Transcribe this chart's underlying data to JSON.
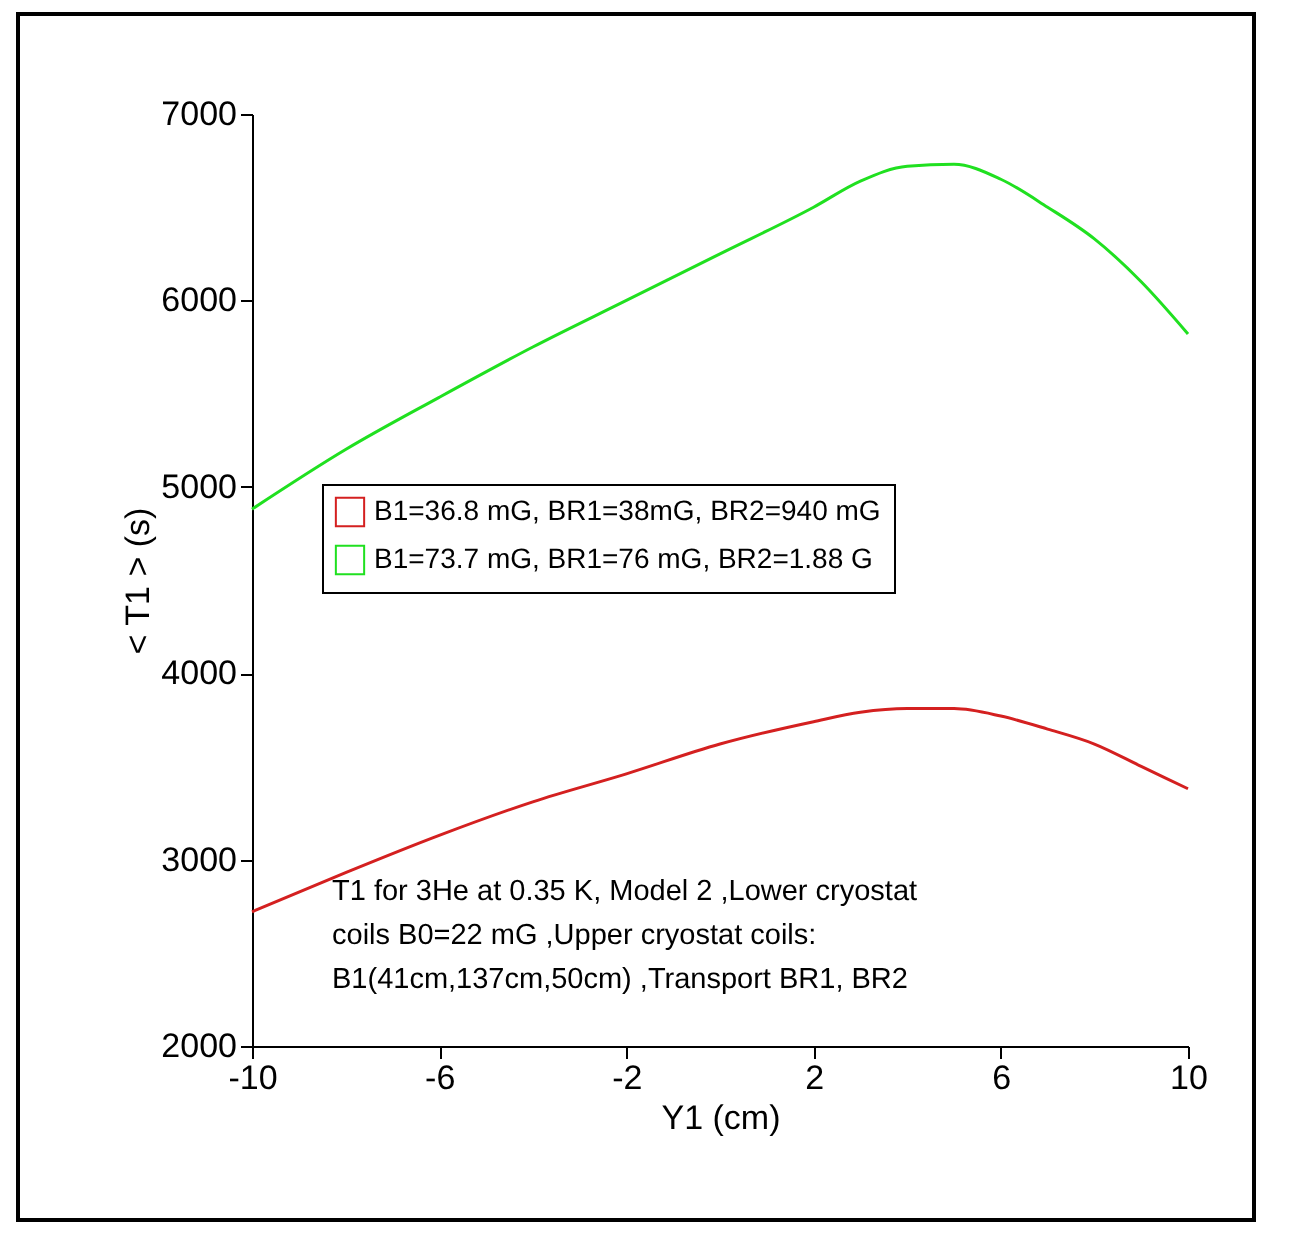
{
  "chart_data": {
    "type": "line",
    "xlabel": "Y1 (cm)",
    "ylabel": "< T1 > (s)",
    "x": [
      -10,
      -8,
      -6,
      -4,
      -2,
      0,
      2,
      3,
      4,
      5,
      6,
      7,
      8,
      9,
      10
    ],
    "series": [
      {
        "name": "B1=36.8 mG, BR1=38mG, BR2=940 mG",
        "color": "#d42020",
        "values": [
          2720,
          2930,
          3130,
          3310,
          3460,
          3620,
          3740,
          3790,
          3810,
          3810,
          3770,
          3700,
          3620,
          3500,
          3380
        ]
      },
      {
        "name": "B1=73.7 mG, BR1=76 mG, BR2=1.88 G",
        "color": "#20e020",
        "values": [
          4880,
          5200,
          5480,
          5750,
          6000,
          6250,
          6500,
          6640,
          6720,
          6730,
          6650,
          6500,
          6330,
          6100,
          5820
        ]
      }
    ],
    "xlim": [
      -10,
      10
    ],
    "xticks": [
      -10,
      -6,
      -2,
      2,
      6,
      10
    ],
    "ylim": [
      2000,
      7000
    ],
    "yticks": [
      2000,
      3000,
      4000,
      5000,
      6000,
      7000
    ],
    "annotations": [
      "T1 for 3He at 0.35 K, Model 2 ,Lower cryostat coils B0=22 mG ,Upper cryostat coils: B1(41cm,137cm,50cm) ,Transport BR1, BR2"
    ],
    "legend": "left",
    "grid": false,
    "marker": "none",
    "line_style": "solid"
  }
}
